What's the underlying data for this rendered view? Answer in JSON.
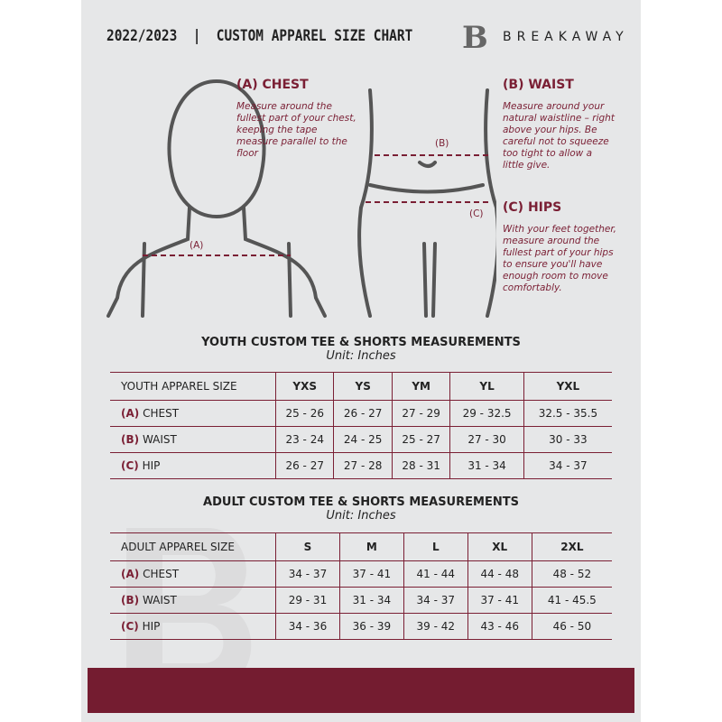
{
  "header": {
    "title": "2022/2023  |  CUSTOM APPAREL SIZE CHART",
    "logo_letter": "B",
    "brand": "BREAKAWAY"
  },
  "colors": {
    "accent": "#7a1f34",
    "page": "#e6e7e8"
  },
  "chest": {
    "heading": "(A) CHEST",
    "text": "Measure around the fullest part of your chest, keeping the tape measure parallel to the floor",
    "marker": "(A)"
  },
  "waist": {
    "heading": "(B) WAIST",
    "text": "Measure around your natural waistline – right above your hips. Be careful not to squeeze too tight to allow a little give.",
    "marker": "(B)"
  },
  "hips": {
    "heading": "(C) HIPS",
    "text": "With your feet together, measure around the fullest part of your hips to ensure you'll have enough room to move comfortably.",
    "marker": "(C)"
  },
  "youth": {
    "title": "YOUTH CUSTOM TEE & SHORTS MEASUREMENTS",
    "unit": "Unit: Inches",
    "header": [
      "YOUTH APPAREL SIZE",
      "YXS",
      "YS",
      "YM",
      "YL",
      "YXL"
    ],
    "rows": [
      {
        "letter": "(A)",
        "label": "CHEST",
        "values": [
          "25 - 26",
          "26 - 27",
          "27 - 29",
          "29 - 32.5",
          "32.5 - 35.5"
        ]
      },
      {
        "letter": "(B)",
        "label": "WAIST",
        "values": [
          "23 - 24",
          "24 - 25",
          "25 - 27",
          "27 - 30",
          "30 - 33"
        ]
      },
      {
        "letter": "(C)",
        "label": "HIP",
        "values": [
          "26 - 27",
          "27 - 28",
          "28 - 31",
          "31 - 34",
          "34 - 37"
        ]
      }
    ]
  },
  "adult": {
    "title": "ADULT CUSTOM TEE & SHORTS MEASUREMENTS",
    "unit": "Unit: Inches",
    "header": [
      "ADULT APPAREL SIZE",
      "S",
      "M",
      "L",
      "XL",
      "2XL"
    ],
    "rows": [
      {
        "letter": "(A)",
        "label": "CHEST",
        "values": [
          "34 - 37",
          "37 - 41",
          "41 - 44",
          "44 - 48",
          "48 - 52"
        ]
      },
      {
        "letter": "(B)",
        "label": "WAIST",
        "values": [
          "29 - 31",
          "31 - 34",
          "34 - 37",
          "37 - 41",
          "41 - 45.5"
        ]
      },
      {
        "letter": "(C)",
        "label": "HIP",
        "values": [
          "34 - 36",
          "36 - 39",
          "39 - 42",
          "43 - 46",
          "46 - 50"
        ]
      }
    ]
  }
}
